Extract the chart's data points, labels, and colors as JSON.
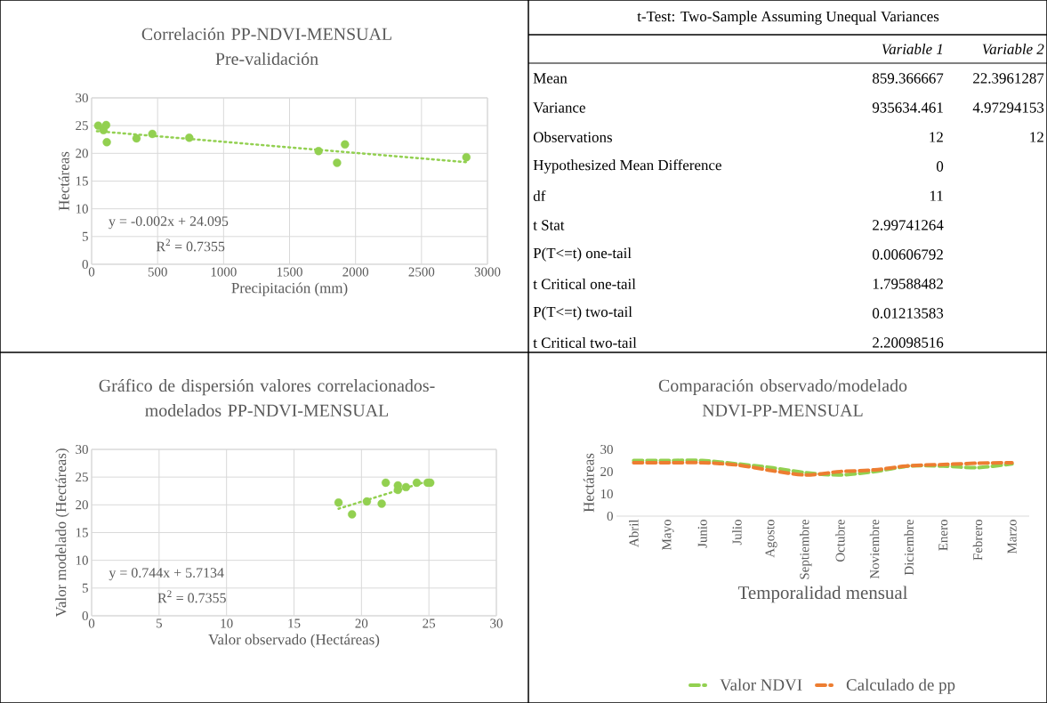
{
  "chart_data": [
    {
      "type": "scatter",
      "title": "Correlación PP-NDVI-MENSUAL",
      "subtitle": "Pre-validación",
      "xlabel": "Precipitación (mm)",
      "ylabel": "Hectáreas",
      "xlim": [
        0,
        3000
      ],
      "ylim": [
        0,
        30
      ],
      "xticks": [
        0,
        500,
        1000,
        1500,
        2000,
        2500,
        3000
      ],
      "yticks": [
        0,
        5,
        10,
        15,
        20,
        25,
        30
      ],
      "grid": true,
      "annotations": [
        "y = -0.002x + 24.095",
        "R$^{2}$ = 0.7355"
      ],
      "series": [
        {
          "type": "scatter",
          "color": "#92d050",
          "marker": "circle",
          "x": [
            50,
            90,
            110,
            115,
            340,
            460,
            740,
            1720,
            1860,
            1920,
            2840
          ],
          "values": [
            25,
            24.2,
            25.1,
            22,
            22.7,
            23.5,
            22.8,
            20.4,
            18.3,
            21.6,
            19.3
          ]
        },
        {
          "type": "line",
          "color": "#92d050",
          "marker": "none",
          "line_style": "dotted",
          "x": [
            40,
            2840
          ],
          "values": [
            24.0,
            18.4
          ]
        }
      ]
    },
    {
      "type": "other",
      "title": "t-Test: Two-Sample Assuming Unequal Variances",
      "annotations": [
        null,
        "Variable 1",
        "Variable 2",
        "Mean",
        "859.366667",
        "22.3961287",
        "Variance",
        "935634.461",
        "4.97294153",
        "Observations",
        "12",
        "12",
        "Hypothesized Mean Difference",
        "0",
        null,
        "df",
        "11",
        null,
        "t Stat",
        "2.99741264",
        null,
        "P(T<=t) one-tail",
        "0.00606792",
        null,
        "t Critical one-tail",
        "1.79588482",
        null,
        "P(T<=t) two-tail",
        "0.01213583",
        null,
        "t Critical two-tail",
        "2.20098516",
        null
      ]
    },
    {
      "type": "scatter",
      "title": "Gráfico de dispersión valores correlacionados-modelados PP-NDVI-MENSUAL",
      "xlabel": "Valor observado (Hectáreas)",
      "ylabel": "Valor modelado (Hectáreas)",
      "xlim": [
        0,
        30
      ],
      "ylim": [
        0,
        30
      ],
      "xticks": [
        0,
        5,
        10,
        15,
        20,
        25,
        30
      ],
      "yticks": [
        0,
        5,
        10,
        15,
        20,
        25,
        30
      ],
      "grid": true,
      "annotations": [
        "y = 0.744x + 5.7134",
        "R$^{2}$ = 0.7355"
      ],
      "series": [
        {
          "type": "scatter",
          "color": "#92d050",
          "marker": "circle",
          "x": [
            18.3,
            19.3,
            20.4,
            21.5,
            21.8,
            22.7,
            22.7,
            23.3,
            24.1,
            24.9,
            25.1
          ],
          "values": [
            20.4,
            18.3,
            20.6,
            20.2,
            24.0,
            23.5,
            22.7,
            23.2,
            24.0,
            24.0,
            24.0
          ]
        },
        {
          "type": "line",
          "color": "#92d050",
          "marker": "none",
          "line_style": "dotted",
          "x": [
            18.3,
            25.1
          ],
          "values": [
            19.3,
            24.4
          ]
        }
      ]
    },
    {
      "type": "line",
      "title": "Comparación observado/modelado",
      "subtitle": "NDVI-PP-MENSUAL",
      "xlabel": "Temporalidad mensual",
      "ylabel": "Hectáreas",
      "categories": [
        "Abril",
        "Mayo",
        "Junio",
        "Julio",
        "Agosto",
        "Septiembre",
        "Octubre",
        "Noviembre",
        "Diciembre",
        "Enero",
        "Febrero",
        "Marzo"
      ],
      "ylim": [
        0,
        30
      ],
      "yticks": [
        0,
        10,
        20,
        30
      ],
      "grid": false,
      "legend": "bottom",
      "marker": "none",
      "line_style": "dashed",
      "series": [
        {
          "name": "Valor NDVI",
          "color": "#92d050",
          "values": [
            25,
            25,
            25,
            23.5,
            21.8,
            19.5,
            18.5,
            20,
            22.5,
            22.5,
            21.8,
            23.5
          ]
        },
        {
          "name": "Calculado de pp",
          "color": "#ed7d31",
          "values": [
            24,
            24,
            24,
            23,
            20.5,
            18.5,
            20,
            20.8,
            22.6,
            23.2,
            23.8,
            24
          ]
        }
      ]
    }
  ]
}
